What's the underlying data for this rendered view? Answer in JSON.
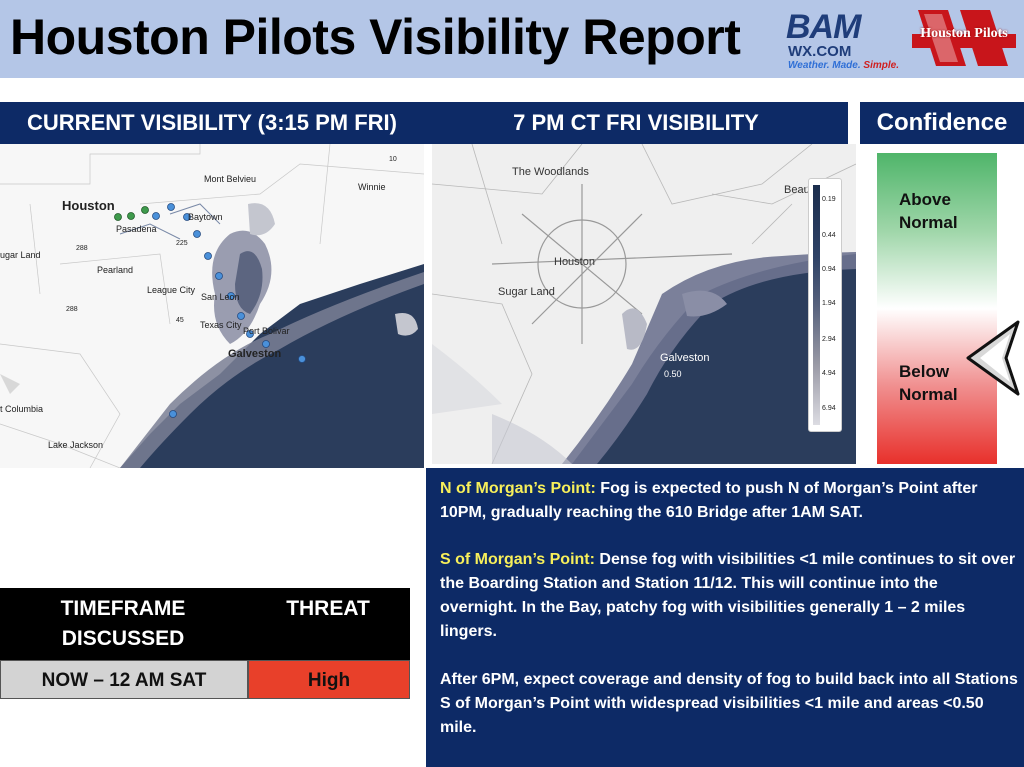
{
  "header": {
    "title": "Houston Pilots Visibility Report"
  },
  "logos": {
    "bam": {
      "main": "BAM",
      "sub": "WX.COM",
      "tagline_a": "Weather. Made. ",
      "tagline_b": "Simple."
    },
    "houston_pilots": {
      "text": "Houston Pilots"
    }
  },
  "panels": {
    "current_title": "CURRENT VISIBILITY (3:15 PM FRI)",
    "forecast_title": "7 PM CT FRI VISIBILITY",
    "confidence_title": "Confidence"
  },
  "current_map": {
    "labels": [
      "Houston",
      "Mont Belvieu",
      "Winnie",
      "Baytown",
      "Pasadena",
      "ugar Land",
      "Pearland",
      "League City",
      "San Leon",
      "Texas City",
      "Port Bolivar",
      "Galveston",
      "t Columbia",
      "Lake Jackson",
      "288",
      "288",
      "225",
      "10",
      "45"
    ]
  },
  "forecast_map": {
    "labels": [
      "The Woodlands",
      "Houston",
      "Sugar Land",
      "Galveston",
      "0.50",
      "Beau"
    ],
    "legend": [
      "0.19",
      "0.44",
      "0.94",
      "1.94",
      "2.94",
      "4.94",
      "6.94"
    ]
  },
  "confidence": {
    "above": "Above Normal",
    "below": "Below Normal",
    "level": "Below Normal"
  },
  "summary": {
    "p1_label": "N of Morgan’s Point:",
    "p1_text": " Fog is expected to push N of Morgan’s Point after 10PM, gradually reaching the 610 Bridge after 1AM SAT.",
    "p2_label": "S of Morgan’s Point:",
    "p2_text": " Dense fog with visibilities <1 mile continues to sit over the Boarding Station and Station 11/12. This will continue into the overnight. In the Bay, patchy fog with visibilities generally 1 – 2 miles lingers.",
    "p3_text": "After 6PM, expect coverage and density of fog to build back into all Stations S of Morgan’s Point with widespread visibilities <1 mile and areas <0.50 mile."
  },
  "threat_table": {
    "headers": [
      "TIMEFRAME DISCUSSED",
      "THREAT"
    ],
    "row": [
      "NOW – 12 AM SAT",
      "High"
    ],
    "colors": {
      "timeframe_bg": "#d3d3d3",
      "threat_bg": "#e8402a"
    }
  }
}
